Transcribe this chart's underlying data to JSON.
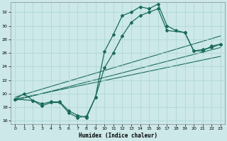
{
  "xlabel": "Humidex (Indice chaleur)",
  "bg_color": "#cce8e8",
  "grid_color": "#aad4d4",
  "line_color": "#1a6b5a",
  "xlim": [
    -0.5,
    23.5
  ],
  "ylim": [
    15.5,
    33.5
  ],
  "yticks": [
    16,
    18,
    20,
    22,
    24,
    26,
    28,
    30,
    32
  ],
  "xticks": [
    0,
    1,
    2,
    3,
    4,
    5,
    6,
    7,
    8,
    9,
    10,
    11,
    12,
    13,
    14,
    15,
    16,
    17,
    18,
    19,
    20,
    21,
    22,
    23
  ],
  "curve1_x": [
    0,
    1,
    2,
    3,
    4,
    5,
    6,
    7,
    8,
    9,
    10,
    11,
    12,
    13,
    14,
    15,
    16,
    17,
    18,
    19,
    20,
    21,
    22,
    23
  ],
  "curve1_y": [
    19.2,
    20.0,
    19.0,
    18.2,
    18.7,
    18.7,
    17.2,
    16.5,
    16.7,
    19.5,
    26.2,
    28.7,
    31.5,
    32.0,
    32.8,
    32.5,
    33.2,
    30.0,
    29.3,
    29.0,
    26.3,
    26.3,
    27.0,
    27.3
  ],
  "curve2_x": [
    0,
    2,
    3,
    4,
    5,
    6,
    7,
    8,
    9,
    10,
    11,
    12,
    13,
    14,
    15,
    16,
    17,
    19,
    20,
    21,
    22,
    23
  ],
  "curve2_y": [
    19.2,
    19.0,
    18.5,
    18.8,
    18.8,
    17.5,
    16.8,
    16.5,
    19.5,
    23.8,
    26.0,
    28.5,
    30.5,
    31.5,
    32.0,
    32.5,
    29.3,
    29.0,
    26.3,
    26.5,
    26.8,
    27.3
  ],
  "line1_x": [
    0,
    23
  ],
  "line1_y": [
    19.5,
    28.5
  ],
  "line2_x": [
    0,
    23
  ],
  "line2_y": [
    19.0,
    26.8
  ],
  "line3_x": [
    0,
    23
  ],
  "line3_y": [
    19.2,
    25.5
  ]
}
